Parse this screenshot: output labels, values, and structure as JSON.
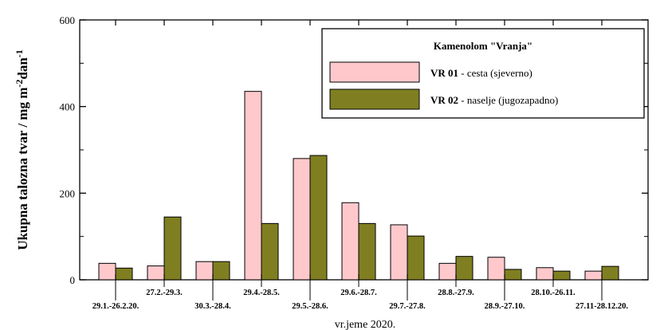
{
  "chart_data": {
    "type": "bar",
    "title": "",
    "ylabel": "Ukupna talozna tvar / mg m-2dan-1",
    "xlabel": "vr.jeme 2020.",
    "ylim": [
      0,
      600
    ],
    "yticks": [
      "0",
      "200",
      "400",
      "600"
    ],
    "categories": [
      "29.1.-26.2.20.",
      "27.2.-29.3.",
      "30.3.-28.4.",
      "29.4.-28.5.",
      "29.5.-28.6.",
      "29.6.-28.7.",
      "29.7.-27.8.",
      "28.8.-27.9.",
      "28.9.-27.10.",
      "28.10.-26.11.",
      "27.11-28.12.20."
    ],
    "legend": {
      "title": "Kamenolom \"Vranja\"",
      "placement": "top-right",
      "entries": [
        {
          "code": "VR 01",
          "desc": " - cesta (sjeverno)"
        },
        {
          "code": "VR 02",
          "desc": " - naselje (jugozapadno)"
        }
      ]
    },
    "series": [
      {
        "name": "VR 01 - cesta (sjeverno)",
        "color": "#ffc9cc",
        "values": [
          38,
          32,
          42,
          435,
          280,
          178,
          127,
          38,
          52,
          28,
          20
        ]
      },
      {
        "name": "VR 02 - naselje (jugozapadno)",
        "color": "#7f7f22",
        "values": [
          27,
          145,
          42,
          130,
          287,
          130,
          101,
          54,
          24,
          20,
          31
        ]
      }
    ],
    "grid": false
  }
}
